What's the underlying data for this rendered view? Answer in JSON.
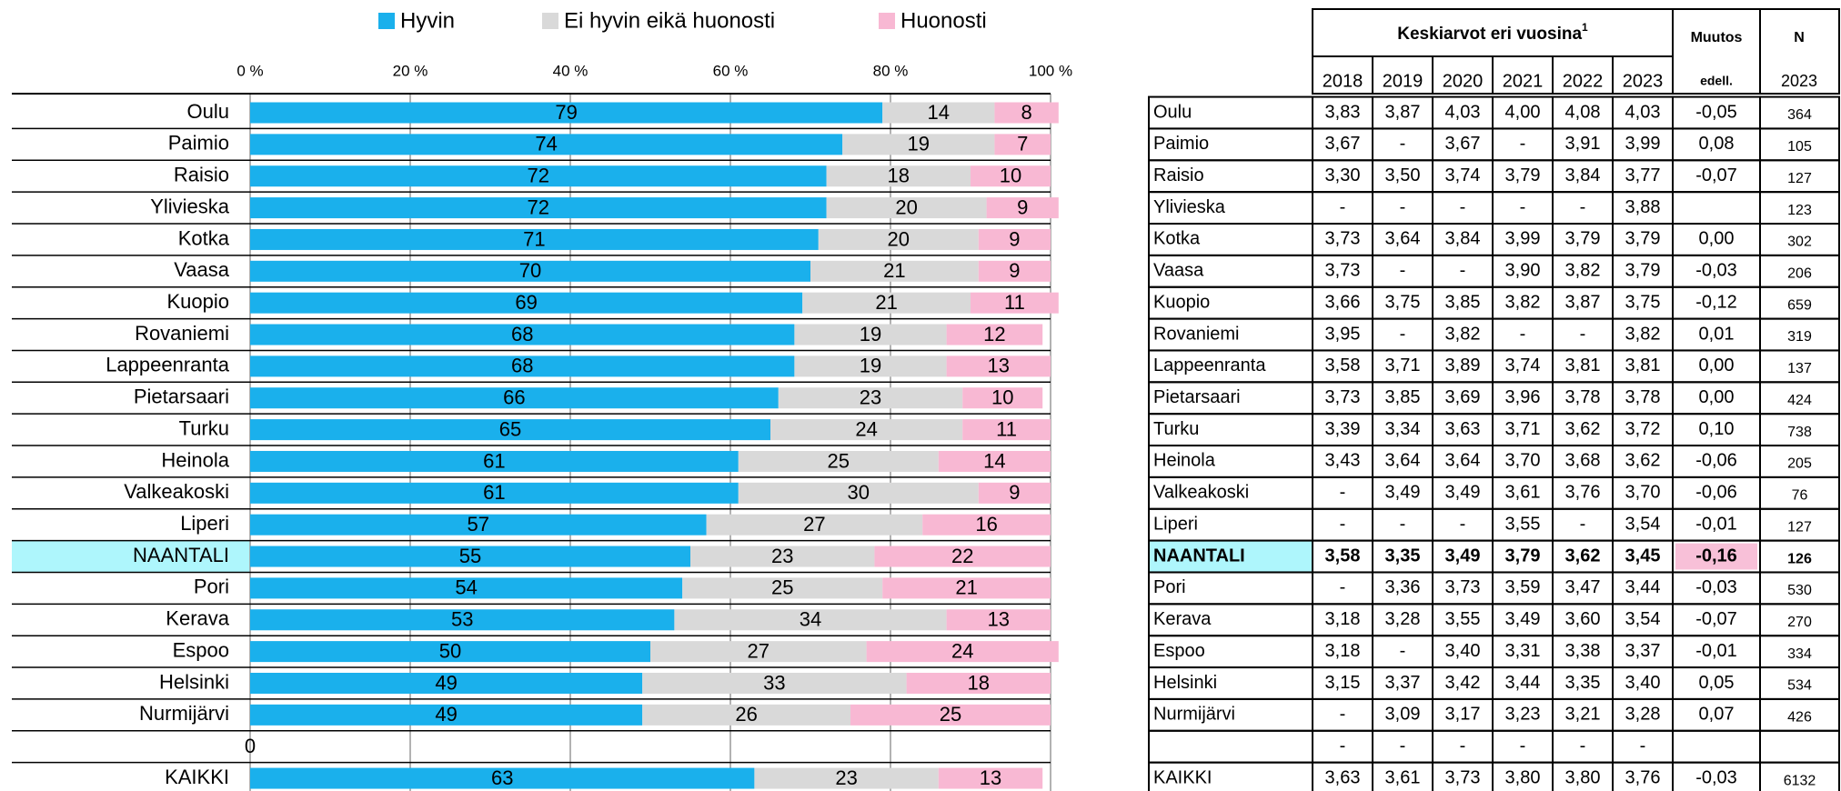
{
  "chart_data": {
    "type": "bar",
    "orientation": "horizontal",
    "stacked": true,
    "categories": [
      "Oulu",
      "Paimio",
      "Raisio",
      "Ylivieska",
      "Kotka",
      "Vaasa",
      "Kuopio",
      "Rovaniemi",
      "Lappeenranta",
      "Pietarsaari",
      "Turku",
      "Heinola",
      "Valkeakoski",
      "Liperi",
      "NAANTALI",
      "Pori",
      "Kerava",
      "Espoo",
      "Helsinki",
      "Nurmijärvi",
      null,
      "KAIKKI"
    ],
    "series": [
      {
        "name": "Hyvin",
        "color": "#1ab0ec",
        "values": [
          79,
          74,
          72,
          72,
          71,
          70,
          69,
          68,
          68,
          66,
          65,
          61,
          61,
          57,
          55,
          54,
          53,
          50,
          49,
          49,
          0,
          63
        ]
      },
      {
        "name": "Ei hyvin eikä huonosti",
        "color": "#d9d9d9",
        "values": [
          14,
          19,
          18,
          20,
          20,
          21,
          21,
          19,
          19,
          23,
          24,
          25,
          30,
          27,
          23,
          25,
          34,
          27,
          33,
          26,
          null,
          23
        ]
      },
      {
        "name": "Huonosti",
        "color": "#f8b8d3",
        "values": [
          8,
          7,
          10,
          9,
          9,
          9,
          11,
          12,
          13,
          10,
          11,
          14,
          9,
          16,
          22,
          21,
          13,
          24,
          18,
          25,
          null,
          13
        ]
      }
    ],
    "xlim": [
      0,
      100
    ],
    "xticks": [
      {
        "value": 0,
        "label": "0 %"
      },
      {
        "value": 20,
        "label": "20 %"
      },
      {
        "value": 40,
        "label": "40 %"
      },
      {
        "value": 60,
        "label": "60 %"
      },
      {
        "value": 80,
        "label": "80 %"
      },
      {
        "value": 100,
        "label": "100 %"
      }
    ],
    "grid": true,
    "legend": "top",
    "highlight": "NAANTALI",
    "highlight_color": "#aef6fc"
  },
  "table": {
    "title": "Keskiarvot eri vuosina",
    "title_sup": "1",
    "years": [
      "2018",
      "2019",
      "2020",
      "2021",
      "2022",
      "2023"
    ],
    "change": "Muutos",
    "change_sub": "edell.",
    "n": "N",
    "n_sub": "2023",
    "change_highlight_color": "#f8c0d8",
    "rows": [
      [
        "Oulu",
        "3,83",
        "3,87",
        "4,03",
        "4,00",
        "4,08",
        "4,03",
        "-0,05",
        "364"
      ],
      [
        "Paimio",
        "3,67",
        "-",
        "3,67",
        "-",
        "3,91",
        "3,99",
        "0,08",
        "105"
      ],
      [
        "Raisio",
        "3,30",
        "3,50",
        "3,74",
        "3,79",
        "3,84",
        "3,77",
        "-0,07",
        "127"
      ],
      [
        "Ylivieska",
        "-",
        "-",
        "-",
        "-",
        "-",
        "3,88",
        null,
        "123"
      ],
      [
        "Kotka",
        "3,73",
        "3,64",
        "3,84",
        "3,99",
        "3,79",
        "3,79",
        "0,00",
        "302"
      ],
      [
        "Vaasa",
        "3,73",
        "-",
        "-",
        "3,90",
        "3,82",
        "3,79",
        "-0,03",
        "206"
      ],
      [
        "Kuopio",
        "3,66",
        "3,75",
        "3,85",
        "3,82",
        "3,87",
        "3,75",
        "-0,12",
        "659"
      ],
      [
        "Rovaniemi",
        "3,95",
        "-",
        "3,82",
        "-",
        "-",
        "3,82",
        "0,01",
        "319"
      ],
      [
        "Lappeenranta",
        "3,58",
        "3,71",
        "3,89",
        "3,74",
        "3,81",
        "3,81",
        "0,00",
        "137"
      ],
      [
        "Pietarsaari",
        "3,73",
        "3,85",
        "3,69",
        "3,96",
        "3,78",
        "3,78",
        "0,00",
        "424"
      ],
      [
        "Turku",
        "3,39",
        "3,34",
        "3,63",
        "3,71",
        "3,62",
        "3,72",
        "0,10",
        "738"
      ],
      [
        "Heinola",
        "3,43",
        "3,64",
        "3,64",
        "3,70",
        "3,68",
        "3,62",
        "-0,06",
        "205"
      ],
      [
        "Valkeakoski",
        "-",
        "3,49",
        "3,49",
        "3,61",
        "3,76",
        "3,70",
        "-0,06",
        "76"
      ],
      [
        "Liperi",
        "-",
        "-",
        "-",
        "3,55",
        "-",
        "3,54",
        "-0,01",
        "127"
      ],
      [
        "NAANTALI",
        "3,58",
        "3,35",
        "3,49",
        "3,79",
        "3,62",
        "3,45",
        "-0,16",
        "126"
      ],
      [
        "Pori",
        "-",
        "3,36",
        "3,73",
        "3,59",
        "3,47",
        "3,44",
        "-0,03",
        "530"
      ],
      [
        "Kerava",
        "3,18",
        "3,28",
        "3,55",
        "3,49",
        "3,60",
        "3,54",
        "-0,07",
        "270"
      ],
      [
        "Espoo",
        "3,18",
        "-",
        "3,40",
        "3,31",
        "3,38",
        "3,37",
        "-0,01",
        "334"
      ],
      [
        "Helsinki",
        "3,15",
        "3,37",
        "3,42",
        "3,44",
        "3,35",
        "3,40",
        "0,05",
        "534"
      ],
      [
        "Nurmijärvi",
        "-",
        "3,09",
        "3,17",
        "3,23",
        "3,21",
        "3,28",
        "0,07",
        "426"
      ],
      [
        null,
        "-",
        "-",
        "-",
        "-",
        "-",
        "-",
        null,
        null
      ],
      [
        "KAIKKI",
        "3,63",
        "3,61",
        "3,73",
        "3,80",
        "3,80",
        "3,76",
        "-0,03",
        "6132"
      ]
    ]
  }
}
